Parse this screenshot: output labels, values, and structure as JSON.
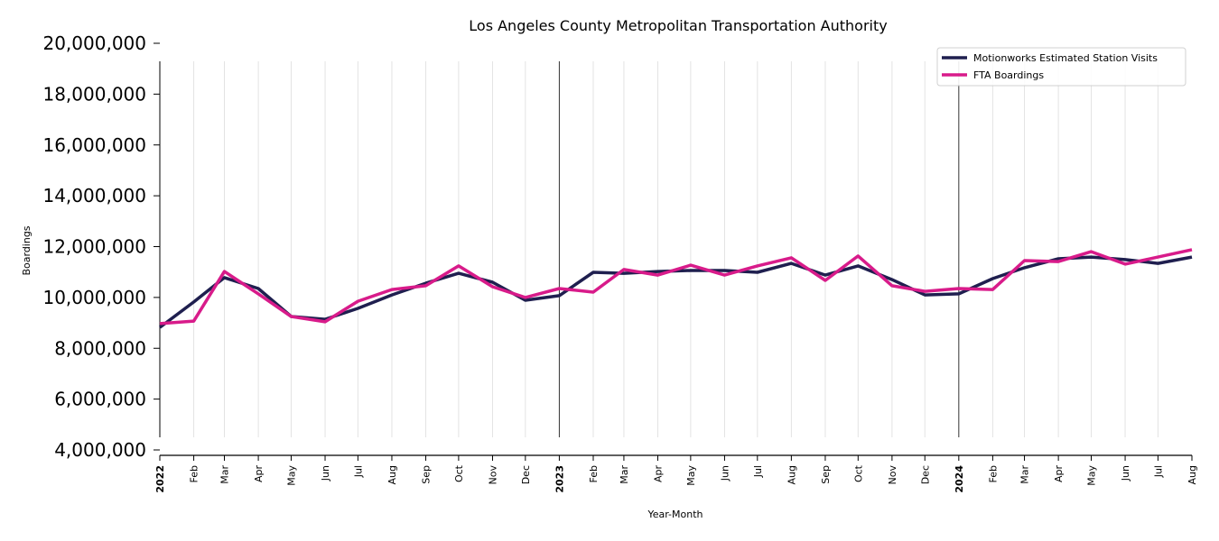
{
  "chart_data": {
    "type": "line",
    "title": "Los Angeles County Metropolitan Transportation Authority",
    "xlabel": "Year-Month",
    "ylabel": "Boardings",
    "ylim": [
      4000000,
      20000000
    ],
    "yticks": [
      4000000,
      6000000,
      8000000,
      10000000,
      12000000,
      14000000,
      16000000,
      18000000,
      20000000
    ],
    "ytick_labels": [
      "4,000,000",
      "6,000,000",
      "8,000,000",
      "10,000,000",
      "12,000,000",
      "14,000,000",
      "16,000,000",
      "18,000,000",
      "20,000,000"
    ],
    "x": [
      "2022-01",
      "2022-02",
      "2022-03",
      "2022-04",
      "2022-05",
      "2022-06",
      "2022-07",
      "2022-08",
      "2022-09",
      "2022-10",
      "2022-11",
      "2022-12",
      "2023-01",
      "2023-02",
      "2023-03",
      "2023-04",
      "2023-05",
      "2023-06",
      "2023-07",
      "2023-08",
      "2023-09",
      "2023-10",
      "2023-11",
      "2023-12",
      "2024-01",
      "2024-02",
      "2024-03",
      "2024-04",
      "2024-05",
      "2024-06",
      "2024-07",
      "2024-08"
    ],
    "xtick_labels": [
      "2022",
      "Feb",
      "Mar",
      "Apr",
      "May",
      "Jun",
      "Jul",
      "Aug",
      "Sep",
      "Oct",
      "Nov",
      "Dec",
      "2023",
      "Feb",
      "Mar",
      "Apr",
      "May",
      "Jun",
      "Jul",
      "Aug",
      "Sep",
      "Oct",
      "Nov",
      "Dec",
      "2024",
      "Feb",
      "Mar",
      "Apr",
      "May",
      "Jun",
      "Jul",
      "Aug"
    ],
    "grid": "vertical",
    "legend_position": "top-right",
    "series": [
      {
        "name": "Motionworks Estimated Station Visits",
        "color": "#1f1f4f",
        "values": [
          8820000,
          9820000,
          10780000,
          10350000,
          9250000,
          9140000,
          9570000,
          10100000,
          10560000,
          10950000,
          10600000,
          9890000,
          10070000,
          10990000,
          10950000,
          11020000,
          11060000,
          11060000,
          10990000,
          11340000,
          10880000,
          11240000,
          10700000,
          10100000,
          10140000,
          10740000,
          11170000,
          11520000,
          11590000,
          11490000,
          11340000,
          11590000
        ]
      },
      {
        "name": "FTA Boardings",
        "color": "#d81b8a",
        "values": [
          8970000,
          9070000,
          11020000,
          10140000,
          9250000,
          9040000,
          9850000,
          10310000,
          10460000,
          11240000,
          10420000,
          10000000,
          10350000,
          10210000,
          11100000,
          10880000,
          11270000,
          10880000,
          11240000,
          11560000,
          10670000,
          11630000,
          10460000,
          10240000,
          10350000,
          10310000,
          11450000,
          11410000,
          11800000,
          11310000,
          11590000,
          11880000
        ]
      }
    ]
  }
}
